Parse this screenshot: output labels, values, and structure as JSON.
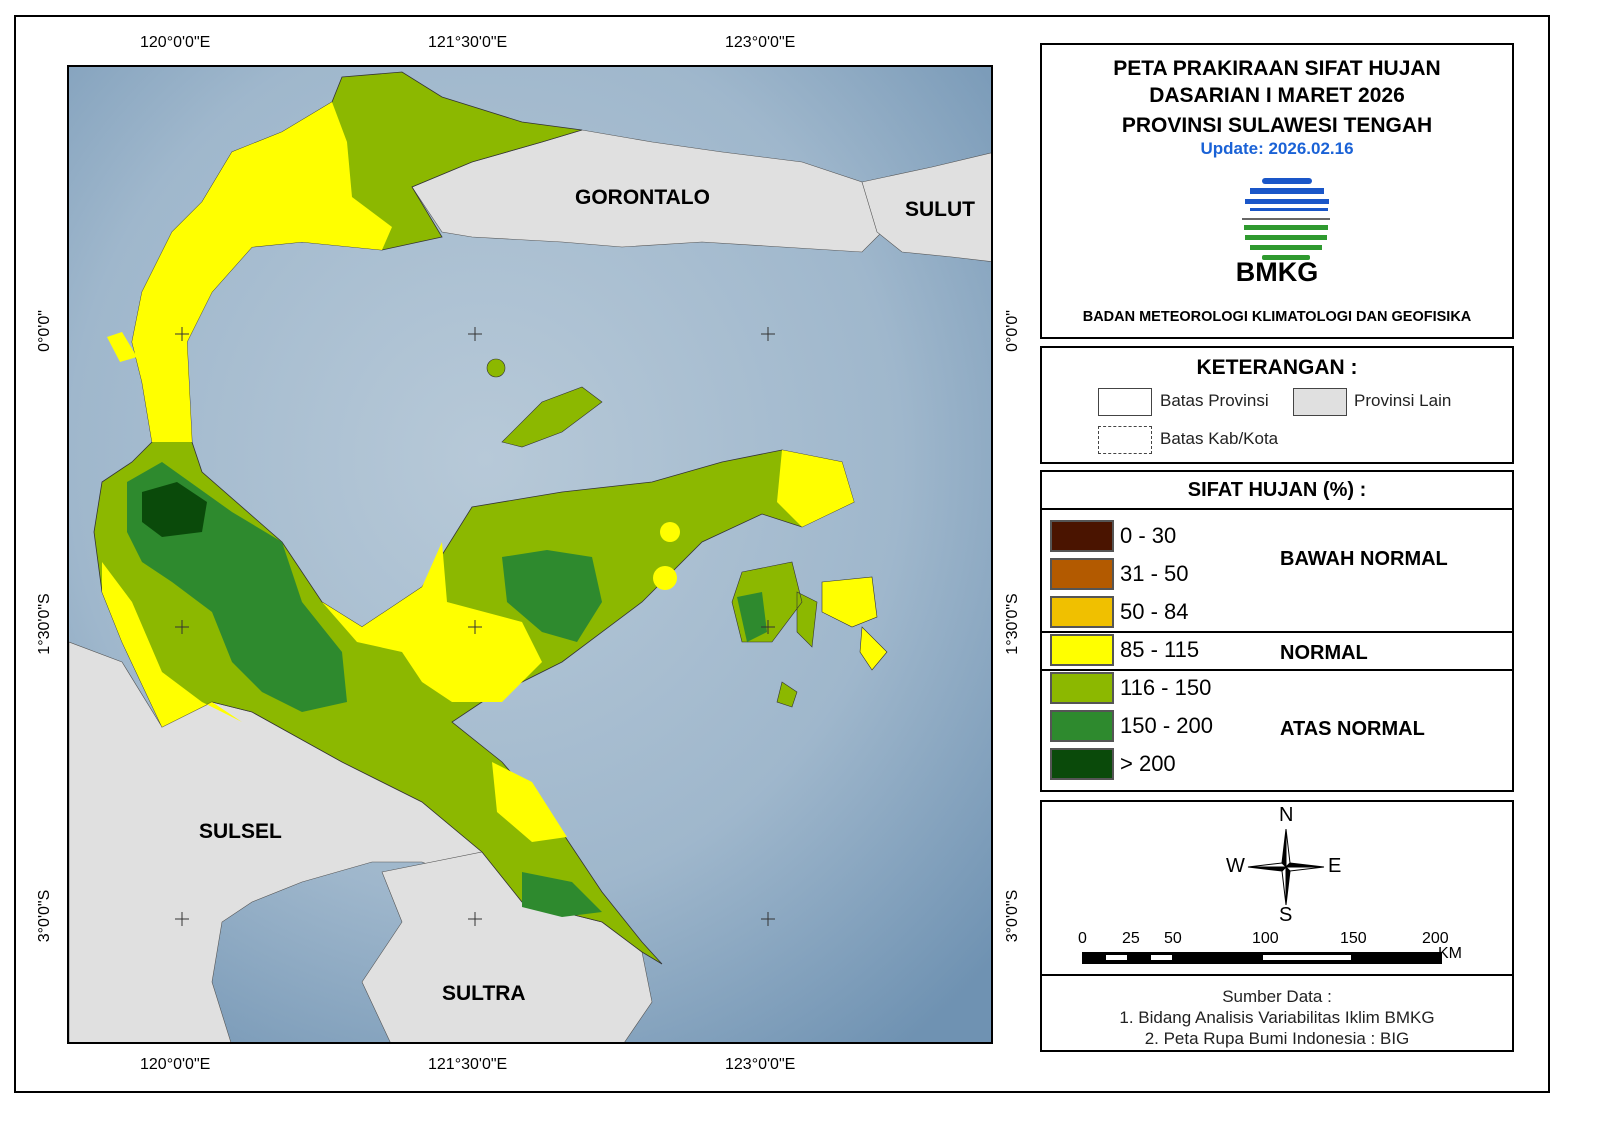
{
  "title_block": {
    "line1": "PETA PRAKIRAAN SIFAT HUJAN",
    "line2": "DASARIAN I MARET 2026",
    "line3": "PROVINSI SULAWESI TENGAH",
    "update": "Update: 2026.02.16",
    "logo_text": "BMKG",
    "agency": "BADAN METEOROLOGI KLIMATOLOGI DAN GEOFISIKA"
  },
  "graticule": {
    "lon_labels": [
      "120°0'0\"E",
      "121°30'0\"E",
      "123°0'0\"E"
    ],
    "lat_labels": [
      "0°0'0\"",
      "1°30'0\"S",
      "3°0'0\"S"
    ]
  },
  "map_labels": {
    "gorontalo": "GORONTALO",
    "sulut": "SULUT",
    "sulsel": "SULSEL",
    "sultra": "SULTRA"
  },
  "keterangan": {
    "title": "KETERANGAN :",
    "batas_provinsi": "Batas Provinsi",
    "provinsi_lain": "Provinsi Lain",
    "batas_kab": "Batas Kab/Kota"
  },
  "sifat_hujan": {
    "title": "SIFAT HUJAN (%) :",
    "classes": [
      {
        "range": "0 - 30",
        "color": "#4a1400"
      },
      {
        "range": "31 - 50",
        "color": "#b35a00"
      },
      {
        "range": "50 - 84",
        "color": "#f0c000"
      },
      {
        "range": "85 - 115",
        "color": "#ffff00"
      },
      {
        "range": "116 - 150",
        "color": "#8cb800"
      },
      {
        "range": "150 - 200",
        "color": "#2e8a2e"
      },
      {
        "range": "> 200",
        "color": "#0a4a0a"
      }
    ],
    "groups": {
      "bawah": "BAWAH NORMAL",
      "normal": "NORMAL",
      "atas": "ATAS NORMAL"
    }
  },
  "compass": {
    "n": "N",
    "s": "S",
    "e": "E",
    "w": "W"
  },
  "scale": {
    "ticks": [
      "0",
      "25",
      "50",
      "100",
      "150",
      "200"
    ],
    "unit": "KM"
  },
  "source": {
    "title": "Sumber Data :",
    "line1": "1. Bidang Analisis Variabilitas Iklim BMKG",
    "line2": "2. Peta Rupa Bumi Indonesia : BIG"
  }
}
